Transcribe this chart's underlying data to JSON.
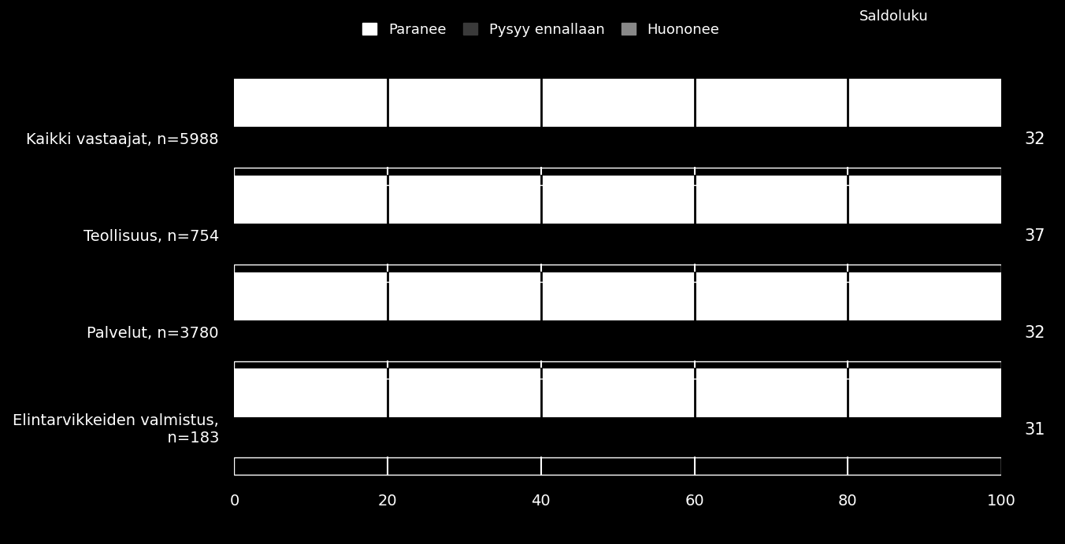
{
  "categories": [
    "Kaikki vastaajat, n=5988",
    "Teollisuus, n=754",
    "Palvelut, n=3780",
    "Elintarvikkeiden valmistus,\n  n=183"
  ],
  "saldoluku": [
    32,
    37,
    32,
    31
  ],
  "background_color": "#000000",
  "text_color": "#ffffff",
  "bar_white_color": "#ffffff",
  "bar_dark_color": "#000000",
  "bar_dark_border_color": "#ffffff",
  "divider_color": "#000000",
  "xlim": [
    0,
    100
  ],
  "xticks": [
    0,
    20,
    40,
    60,
    80,
    100
  ],
  "legend_labels": [
    "Paranee",
    "Pysyy ennallaan",
    "Huononee",
    "Saldoluku"
  ],
  "legend_colors": [
    "#ffffff",
    "#3a3a3a",
    "#888888"
  ],
  "tick_fontsize": 14,
  "label_fontsize": 14,
  "legend_fontsize": 13,
  "saldo_fontsize": 15
}
